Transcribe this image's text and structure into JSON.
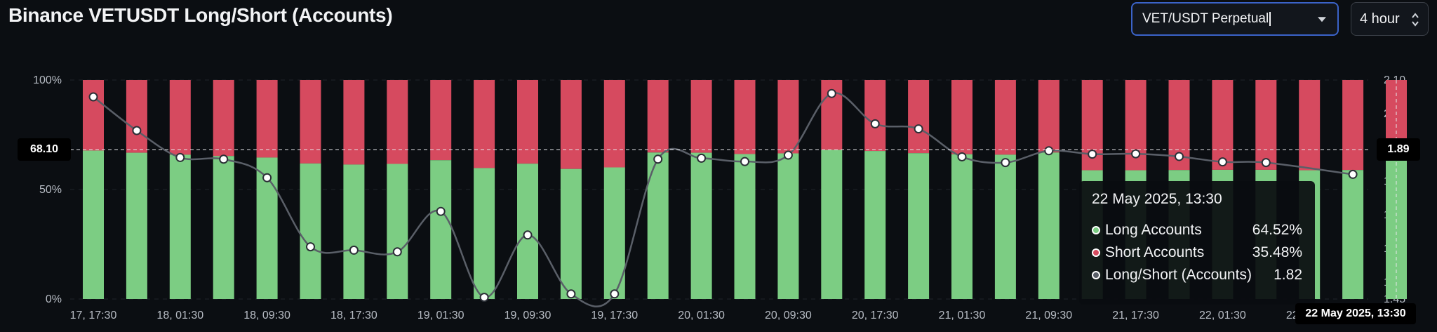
{
  "title": "Binance VETUSDT Long/Short (Accounts)",
  "controls": {
    "pair_value": "VET/USDT Perpetual",
    "interval_value": "4 hour"
  },
  "colors": {
    "long": "#7ccd83",
    "short": "#d64a5f",
    "ratio_line": "#5a5f68",
    "background": "#0b0e12"
  },
  "tooltip": {
    "title": "22 May 2025, 13:30",
    "rows": [
      {
        "label": "Long Accounts",
        "value": "64.52%",
        "color": "#7ccd83"
      },
      {
        "label": "Short Accounts",
        "value": "35.48%",
        "color": "#d64a5f"
      },
      {
        "label": "Long/Short (Accounts)",
        "value": "1.82",
        "color": "#5a5f68"
      }
    ]
  },
  "crosshair": {
    "left_value": "68.10",
    "right_value": "1.89",
    "x_label": "22 May 2025, 13:30"
  },
  "chart_data": {
    "type": "bar",
    "stacked_percent": true,
    "left_axis": {
      "ticks": [
        "0%",
        "50%",
        "100%"
      ]
    },
    "right_axis": {
      "range": [
        1.45,
        2.1
      ],
      "ticks": [
        "1.45",
        "1.50",
        "1.60",
        "1.70",
        "1.80",
        "2.00",
        "2.10"
      ]
    },
    "x_tick_labels": [
      "17, 17:30",
      "18, 01:30",
      "18, 09:30",
      "18, 17:30",
      "19, 01:30",
      "19, 09:30",
      "19, 17:30",
      "20, 01:30",
      "20, 09:30",
      "20, 17:30",
      "21, 01:30",
      "21, 09:30",
      "21, 17:30",
      "22, 01:30",
      "22, 09:30"
    ],
    "x_tick_every": 2,
    "series": [
      {
        "name": "Long Accounts",
        "values": [
          67.8,
          66.8,
          65.9,
          65.3,
          64.6,
          61.9,
          61.4,
          61.7,
          63.4,
          59.8,
          61.8,
          59.4,
          60.1,
          66.9,
          66.8,
          66.2,
          66.5,
          68.1,
          67.6,
          66.6,
          66.1,
          65.9,
          66.9,
          58.8,
          58.8,
          58.9,
          59.0,
          59.0,
          58.8,
          58.9,
          64.52
        ]
      },
      {
        "name": "Short Accounts",
        "values": [
          32.2,
          33.2,
          34.1,
          34.7,
          35.4,
          38.1,
          38.6,
          38.3,
          36.6,
          40.2,
          38.2,
          40.6,
          39.9,
          33.1,
          33.2,
          33.8,
          33.5,
          31.9,
          32.4,
          33.4,
          33.9,
          34.1,
          33.1,
          41.2,
          41.2,
          41.1,
          41.0,
          41.0,
          41.2,
          41.1,
          35.48
        ]
      },
      {
        "name": "Long/Short (Accounts)",
        "values": [
          2.05,
          1.95,
          1.87,
          1.865,
          1.81,
          1.605,
          1.595,
          1.59,
          1.71,
          1.455,
          1.64,
          1.465,
          1.465,
          1.865,
          1.868,
          1.858,
          1.877,
          2.06,
          1.97,
          1.955,
          1.872,
          1.855,
          1.89,
          1.88,
          1.881,
          1.873,
          1.857,
          1.855,
          null,
          1.82
        ]
      }
    ]
  }
}
